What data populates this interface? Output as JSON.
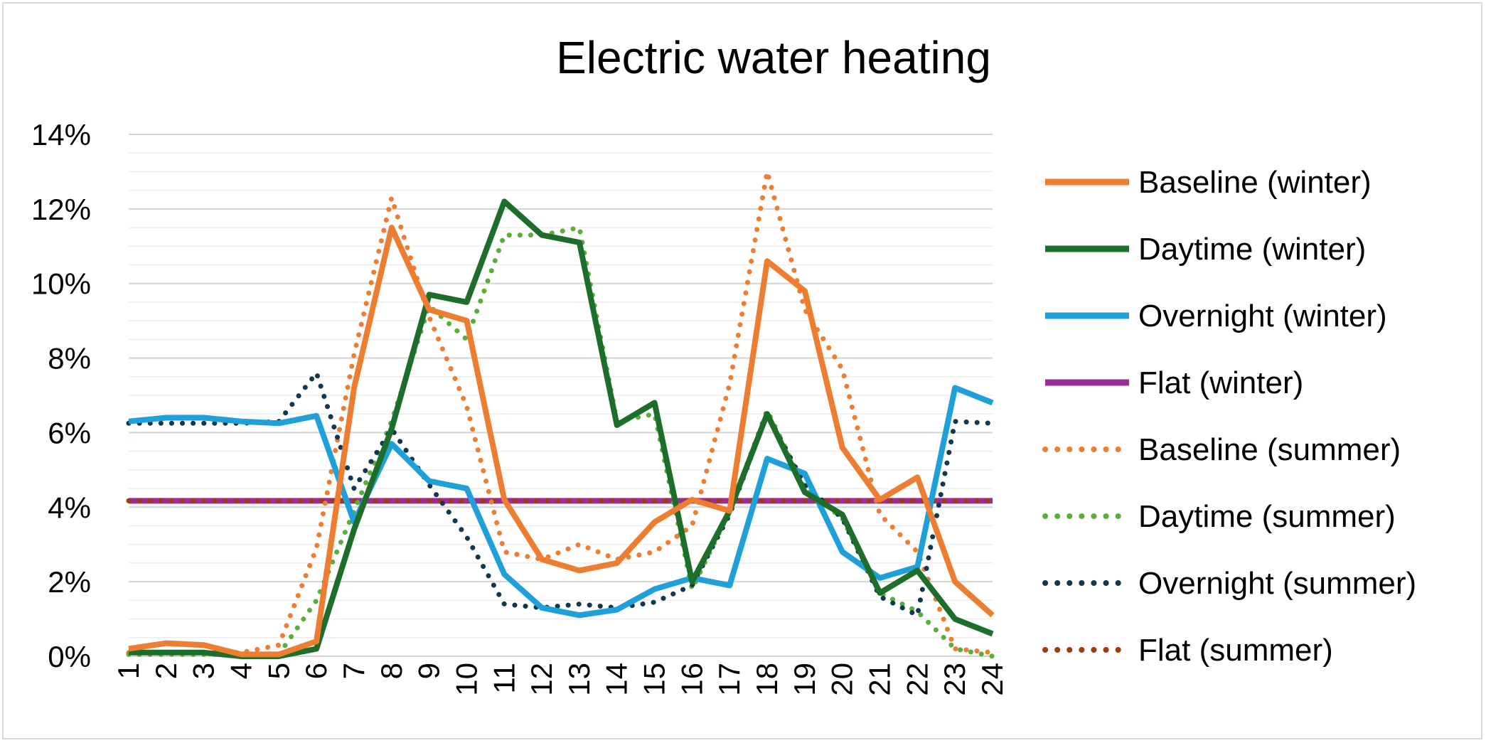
{
  "chart_data": {
    "type": "line",
    "title": "Electric water heating",
    "xlabel": "",
    "ylabel": "",
    "x": [
      1,
      2,
      3,
      4,
      5,
      6,
      7,
      8,
      9,
      10,
      11,
      12,
      13,
      14,
      15,
      16,
      17,
      18,
      19,
      20,
      21,
      22,
      23,
      24
    ],
    "ylim": [
      0,
      14
    ],
    "y_ticks": [
      "0%",
      "2%",
      "4%",
      "6%",
      "8%",
      "10%",
      "12%",
      "14%"
    ],
    "grid": "horizontal",
    "legend_position": "right",
    "series": [
      {
        "name": "Baseline (winter)",
        "color": "#ED7D31",
        "style": "solid",
        "values": [
          0.2,
          0.35,
          0.3,
          0.05,
          0.05,
          0.4,
          7.2,
          11.5,
          9.3,
          9.0,
          4.2,
          2.6,
          2.3,
          2.5,
          3.6,
          4.2,
          3.9,
          10.6,
          9.8,
          5.6,
          4.2,
          4.8,
          2.0,
          1.1
        ]
      },
      {
        "name": "Daytime (winter)",
        "color": "#1E6E2B",
        "style": "solid",
        "values": [
          0.1,
          0.1,
          0.1,
          0.0,
          0.0,
          0.2,
          3.4,
          6.1,
          9.7,
          9.5,
          12.2,
          11.3,
          11.1,
          6.2,
          6.8,
          2.0,
          3.9,
          6.5,
          4.4,
          3.8,
          1.7,
          2.3,
          1.0,
          0.6
        ]
      },
      {
        "name": "Overnight (winter)",
        "color": "#1FA0D8",
        "style": "solid",
        "values": [
          6.3,
          6.4,
          6.4,
          6.3,
          6.25,
          6.45,
          3.6,
          5.7,
          4.7,
          4.5,
          2.2,
          1.3,
          1.1,
          1.25,
          1.8,
          2.1,
          1.9,
          5.3,
          4.9,
          2.8,
          2.1,
          2.4,
          7.2,
          6.8
        ]
      },
      {
        "name": "Flat (winter)",
        "color": "#9B2D96",
        "style": "solid",
        "values": [
          4.17,
          4.17,
          4.17,
          4.17,
          4.17,
          4.17,
          4.17,
          4.17,
          4.17,
          4.17,
          4.17,
          4.17,
          4.17,
          4.17,
          4.17,
          4.17,
          4.17,
          4.17,
          4.17,
          4.17,
          4.17,
          4.17,
          4.17,
          4.17
        ]
      },
      {
        "name": "Baseline (summer)",
        "color": "#ED7D31",
        "style": "dotted",
        "values": [
          0.1,
          0.1,
          0.1,
          0.1,
          0.3,
          2.9,
          8.1,
          12.3,
          9.1,
          6.7,
          2.8,
          2.6,
          3.0,
          2.6,
          2.8,
          3.5,
          7.3,
          13.0,
          9.3,
          7.7,
          3.8,
          2.8,
          0.2,
          0.1
        ]
      },
      {
        "name": "Daytime (summer)",
        "color": "#5AAE3C",
        "style": "dotted",
        "values": [
          0.05,
          0.05,
          0.05,
          0.05,
          0.05,
          1.5,
          3.9,
          6.3,
          9.4,
          8.5,
          11.3,
          11.3,
          11.5,
          6.3,
          6.5,
          1.8,
          3.9,
          6.6,
          4.5,
          3.7,
          1.7,
          1.2,
          0.2,
          0.0
        ]
      },
      {
        "name": "Overnight (summer)",
        "color": "#12384F",
        "style": "dotted",
        "values": [
          6.25,
          6.25,
          6.25,
          6.25,
          6.3,
          7.6,
          4.5,
          6.1,
          4.6,
          3.2,
          1.4,
          1.3,
          1.4,
          1.3,
          1.45,
          1.9,
          3.8,
          6.5,
          4.6,
          3.7,
          1.6,
          1.1,
          6.3,
          6.25
        ]
      },
      {
        "name": "Flat (summer)",
        "color": "#A23A10",
        "style": "dotted",
        "values": [
          4.17,
          4.17,
          4.17,
          4.17,
          4.17,
          4.17,
          4.17,
          4.17,
          4.17,
          4.17,
          4.17,
          4.17,
          4.17,
          4.17,
          4.17,
          4.17,
          4.17,
          4.17,
          4.17,
          4.17,
          4.17,
          4.17,
          4.17,
          4.17
        ]
      }
    ]
  }
}
